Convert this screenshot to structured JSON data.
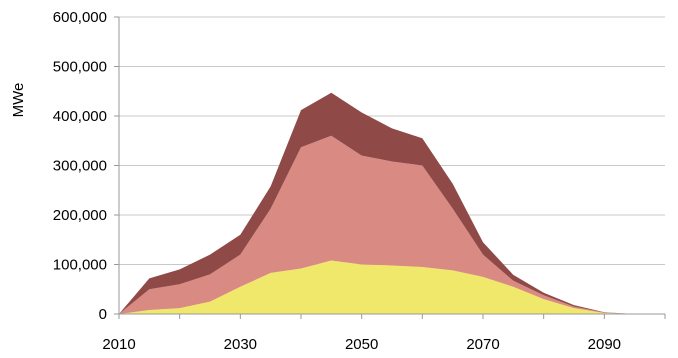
{
  "chart_data": {
    "type": "area",
    "stacked": true,
    "ylabel": "MWe",
    "xlim": [
      2010,
      2100
    ],
    "ylim": [
      0,
      600000
    ],
    "x_ticks": [
      2010,
      2030,
      2050,
      2070,
      2090
    ],
    "y_ticks": [
      0,
      100000,
      200000,
      300000,
      400000,
      500000,
      600000
    ],
    "y_tick_labels": [
      "0",
      "100,000",
      "200,000",
      "300,000",
      "400,000",
      "500,000",
      "600,000"
    ],
    "grid": "horizontal",
    "legend": "none",
    "x": [
      2010,
      2015,
      2020,
      2025,
      2030,
      2035,
      2040,
      2045,
      2050,
      2055,
      2060,
      2065,
      2070,
      2075,
      2080,
      2085,
      2090,
      2095,
      2100
    ],
    "series": [
      {
        "color": "#f0e86a",
        "values": [
          0,
          8000,
          12000,
          25000,
          55000,
          83000,
          92000,
          108000,
          100000,
          98000,
          95000,
          88000,
          75000,
          55000,
          30000,
          12000,
          2000,
          0,
          0
        ]
      },
      {
        "color": "#d98a82",
        "values": [
          0,
          42000,
          48000,
          55000,
          65000,
          130000,
          245000,
          252000,
          220000,
          210000,
          205000,
          125000,
          45000,
          12000,
          8000,
          3000,
          1000,
          0,
          0
        ]
      },
      {
        "color": "#8f4a48",
        "values": [
          0,
          22000,
          30000,
          40000,
          40000,
          45000,
          75000,
          87000,
          87000,
          67000,
          55000,
          50000,
          25000,
          12000,
          5000,
          3000,
          500,
          0,
          0
        ]
      }
    ]
  }
}
